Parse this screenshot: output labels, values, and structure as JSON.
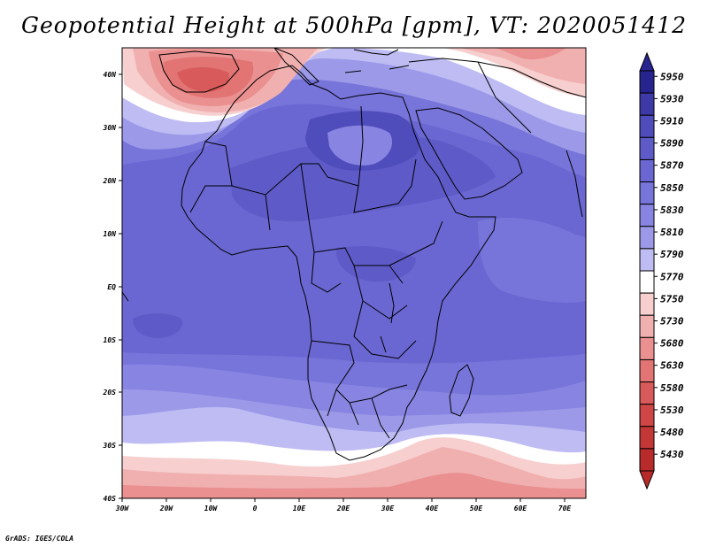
{
  "title": "Geopotential Height at 500hPa [gpm], VT: 2020051412",
  "credit": "GrADS: IGES/COLA",
  "axes": {
    "lon_labels": [
      "30W",
      "20W",
      "10W",
      "0",
      "10E",
      "20E",
      "30E",
      "40E",
      "50E",
      "60E",
      "70E"
    ],
    "lat_labels": [
      "40N",
      "30N",
      "20N",
      "10N",
      "EQ",
      "10S",
      "20S",
      "30S",
      "40S"
    ]
  },
  "colorbar": {
    "levels": [
      "5950",
      "5930",
      "5910",
      "5890",
      "5870",
      "5850",
      "5830",
      "5810",
      "5790",
      "5770",
      "5750",
      "5730",
      "5680",
      "5630",
      "5580",
      "5530",
      "5480",
      "5430"
    ],
    "colors": [
      "#27248e",
      "#3d3aa8",
      "#4f4cbc",
      "#5e5bc8",
      "#6a67d2",
      "#7774da",
      "#8885e2",
      "#9c9ae8",
      "#bebcf3",
      "#ffffff",
      "#f7cfcf",
      "#f1b0b0",
      "#ea9090",
      "#e27474",
      "#d95a5a",
      "#cf4646",
      "#c43737",
      "#b92a2a"
    ]
  }
}
